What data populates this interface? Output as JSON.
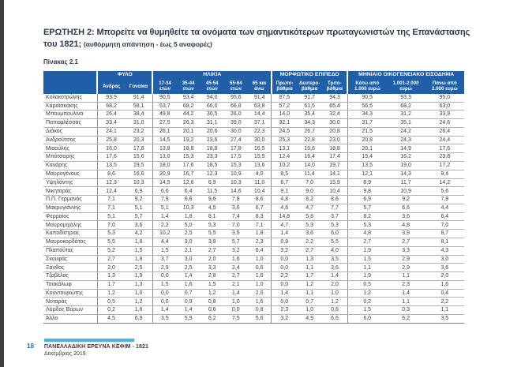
{
  "page": {
    "question_title": "ΕΡΩΤΗΣΗ 2: Μπορείτε να θυμηθείτε τα ονόματα των σημαντικότερων πρωταγωνιστών της Επανάστασης του 1821;",
    "question_note": "(αυθόρμητη απάντηση - έως 5 αναφορές)",
    "table_caption": "Πίνακας 2.1",
    "page_number": "18",
    "footer_line1": "ΠΑΝΕΛΛΑΔΙΚΗ ΕΡΕΥΝΑ ΚΕΦΙΜ - 1821",
    "footer_line2": "Δεκέμβριος 2019"
  },
  "colors": {
    "header_blue": "#1e5fa8",
    "footer_bar_blue": "#45b5e8",
    "page_number_blue": "#1d6eb8",
    "title_navy": "#2b3b4c"
  },
  "chart_data": {
    "type": "table",
    "title": "Πίνακας 2.1",
    "column_groups": [
      {
        "label": "",
        "span": 1
      },
      {
        "label": "ΦΥΛΟ",
        "span": 2
      },
      {
        "label": "ΗΛΙΚΙΑ",
        "span": 5
      },
      {
        "label": "ΜΟΡΦΩΤΙΚΟ ΕΠΙΠΕΔΟ",
        "span": 3
      },
      {
        "label": "ΜΗΝΙΑΙΟ ΟΙΚΟΓΕΝΕΙΑΚΟ ΕΙΣΟΔΗΜΑ",
        "span": 3
      }
    ],
    "columns": [
      "Άνδρας",
      "Γυναίκα",
      "17-34\nετών",
      "35-44\nετών",
      "45-54\nετών",
      "55-64\nετών",
      "65 και\nάνω",
      "Πρωτο-\nβάθμια",
      "Δευτερο-\nβάθμια",
      "Τριτο-\nβάθμια",
      "Κάτω από\n1.000 ευρώ",
      "1.001-2.000\nευρώ",
      "Πάνω από\n2.000 ευρώ"
    ],
    "rows": [
      {
        "label": "Κολοκοτρώνης",
        "values": [
          "93,9",
          "91,4",
          "90,5",
          "93,4",
          "94,0",
          "95,6",
          "91,4",
          "87,5",
          "91,7",
          "94,3",
          "90,5",
          "93,3",
          "95,0"
        ]
      },
      {
        "label": "Καραϊσκάκης",
        "values": [
          "68,2",
          "58,1",
          "53,7",
          "68,2",
          "66,0",
          "66,8",
          "63,8",
          "57,2",
          "61,5",
          "65,4",
          "56,5",
          "68,2",
          "63,0"
        ]
      },
      {
        "label": "Μπουμπουλίνα",
        "values": [
          "26,4",
          "38,4",
          "49,8",
          "44,2",
          "30,5",
          "26,0",
          "14,4",
          "14,0",
          "35,4",
          "32,4",
          "34,3",
          "31,2",
          "33,9"
        ]
      },
      {
        "label": "Παπαφλέσσας",
        "values": [
          "33,4",
          "31,0",
          "27,5",
          "26,3",
          "31,1",
          "39,0",
          "37,1",
          "32,1",
          "34,3",
          "30,0",
          "31,7",
          "35,1",
          "24,6"
        ]
      },
      {
        "label": "Διάκος",
        "values": [
          "24,1",
          "23,2",
          "26,1",
          "20,1",
          "20,6",
          "30,0",
          "22,3",
          "24,5",
          "26,7",
          "20,8",
          "21,5",
          "24,2",
          "26,4"
        ]
      },
      {
        "label": "Ανδρούτσος",
        "values": [
          "25,8",
          "20,3",
          "14,5",
          "19,2",
          "23,6",
          "27,4",
          "30,0",
          "25,3",
          "22,8",
          "23,0",
          "20,8",
          "24,3",
          "24,4"
        ]
      },
      {
        "label": "Μιαούλης",
        "values": [
          "16,0",
          "17,8",
          "13,8",
          "18,8",
          "18,8",
          "17,8",
          "16,5",
          "13,1",
          "15,6",
          "18,8",
          "20,1",
          "14,9",
          "17,6"
        ]
      },
      {
        "label": "Μπότσαρης",
        "values": [
          "17,6",
          "15,6",
          "13,0",
          "15,3",
          "23,3",
          "17,5",
          "15,5",
          "12,4",
          "16,4",
          "17,4",
          "15,4",
          "16,2",
          "23,8"
        ]
      },
      {
        "label": "Κανάρης",
        "values": [
          "13,5",
          "19,5",
          "18,0",
          "17,6",
          "18,5",
          "15,3",
          "13,6",
          "10,2",
          "14,0",
          "19,7",
          "13,5",
          "19,0",
          "17,2"
        ]
      },
      {
        "label": "Μαυρογένους",
        "values": [
          "8,6",
          "16,6",
          "20,9",
          "16,7",
          "12,3",
          "10,9",
          "4,0",
          "8,5",
          "11,4",
          "14,1",
          "12,1",
          "14,3",
          "9,4"
        ]
      },
      {
        "label": "Υψηλάντης",
        "values": [
          "12,3",
          "10,3",
          "14,5",
          "12,6",
          "6,9",
          "10,3",
          "11,0",
          "6,7",
          "7,0",
          "15,9",
          "8,9",
          "11,7",
          "14,2"
        ]
      },
      {
        "label": "Νικηταράς",
        "values": [
          "12,4",
          "6,9",
          "6,6",
          "6,4",
          "11,5",
          "14,6",
          "10,4",
          "9,1",
          "9,0",
          "10,4",
          "9,8",
          "10,9",
          "5,6"
        ]
      },
      {
        "label": "Π.Π. Γερμανός",
        "values": [
          "7,1",
          "9,2",
          "7,9",
          "6,6",
          "9,6",
          "7,8",
          "8,6",
          "4,8",
          "8,2",
          "8,6",
          "6,9",
          "9,2",
          "7,9"
        ]
      },
      {
        "label": "Μακρυγιάννης",
        "values": [
          "7,1",
          "5,1",
          "5,1",
          "10,3",
          "4,5",
          "3,6",
          "6,7",
          "4,6",
          "4,7",
          "7,7",
          "5,7",
          "6,6",
          "4,4"
        ]
      },
      {
        "label": "Φερραίος",
        "values": [
          "5,1",
          "5,7",
          "1,4",
          "1,8",
          "8,1",
          "7,4",
          "8,3",
          "14,8",
          "5,8",
          "3,7",
          "8,2",
          "3,6",
          "6,4"
        ]
      },
      {
        "label": "Μαυρομιχάλης",
        "values": [
          "7,0",
          "3,6",
          "2,2",
          "5,0",
          "5,3",
          "7,0",
          "7,1",
          "4,7",
          "5,3",
          "5,3",
          "5,3",
          "4,8",
          "7,0"
        ]
      },
      {
        "label": "Καποδίστριας",
        "values": [
          "5,3",
          "4,2",
          "10,2",
          "2,5",
          "5,5",
          "3,5",
          "1,8",
          "1,4",
          "3,6",
          "6,0",
          "4,8",
          "3,9",
          "8,7"
        ]
      },
      {
        "label": "Μαυροκορδάτος",
        "values": [
          "5,5",
          "1,8",
          "4,4",
          "3,0",
          "3,9",
          "5,7",
          "2,3",
          "0,9",
          "2,2",
          "5,5",
          "2,7",
          "2,7",
          "8,1"
        ]
      },
      {
        "label": "Πλαπούτας",
        "values": [
          "5,2",
          "1,5",
          "1,5",
          "2,1",
          "2,7",
          "3,2",
          "6,4",
          "3,2",
          "2,7",
          "4,0",
          "1,9",
          "3,3",
          "4,3"
        ]
      },
      {
        "label": "Σκουφάς",
        "values": [
          "2,7",
          "1,8",
          "3,7",
          "3,0",
          "2,0",
          "1,6",
          "1,0",
          "0,0",
          "1,3",
          "3,5",
          "1,5",
          "2,9",
          "3,0"
        ]
      },
      {
        "label": "Ξάνθος",
        "values": [
          "2,0",
          "2,5",
          "2,9",
          "2,5",
          "3,3",
          "2,4",
          "0,6",
          "0,0",
          "1,1",
          "3,6",
          "1,1",
          "2,9",
          "3,6"
        ]
      },
      {
        "label": "Τζαβέλας",
        "values": [
          "1,3",
          "1,9",
          "0,0",
          "1,4",
          "2,8",
          "2,7",
          "1,6",
          "2,2",
          "1,7",
          "1,4",
          "1,9",
          "1,1",
          "2,0"
        ]
      },
      {
        "label": "Τσακάλωφ",
        "values": [
          "1,7",
          "1,3",
          "1,5",
          "1,6",
          "1,5",
          "2,1",
          "1,0",
          "0,0",
          "1,2",
          "2,0",
          "0,5",
          "2,3",
          "1,6"
        ]
      },
      {
        "label": "Κουντουριώτης",
        "values": [
          "1,2",
          "1,0",
          "0,0",
          "0,7",
          "1,2",
          "1,4",
          "2,0",
          "1,4",
          "1,1",
          "1,0",
          "1,2",
          "1,4",
          "0,4"
        ]
      },
      {
        "label": "Νοταράς",
        "values": [
          "0,5",
          "1,2",
          "0,0",
          "0,9",
          "0,8",
          "1,0",
          "1,6",
          "0,0",
          "0,7",
          "1,2",
          "0,2",
          "1,1",
          "2,2"
        ]
      },
      {
        "label": "Λόρδος Βύρων",
        "values": [
          "0,2",
          "1,6",
          "1,4",
          "1,4",
          "0,6",
          "0,0",
          "0,8",
          "2,3",
          "1,0",
          "0,6",
          "1,5",
          "0,3",
          "1,1"
        ]
      },
      {
        "label": "Άλλο",
        "values": [
          "4,5",
          "6,9",
          "3,5",
          "5,9",
          "6,2",
          "7,5",
          "5,6",
          "3,2",
          "4,9",
          "6,6",
          "6,0",
          "6,2",
          "3,5"
        ]
      }
    ]
  }
}
